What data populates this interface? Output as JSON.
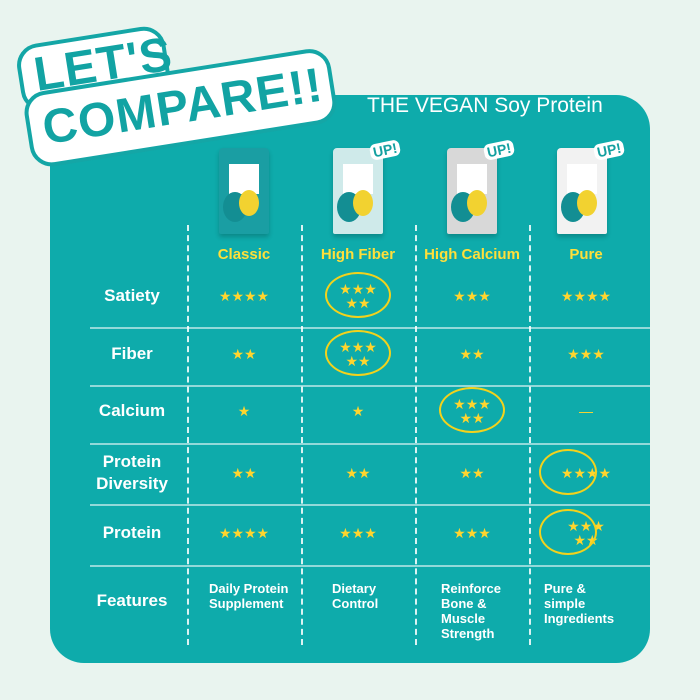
{
  "headline": {
    "line1": "LET'S",
    "line2": "COMPARE",
    "exclaim": "!!"
  },
  "brand_title": "THE VEGAN Soy Protein",
  "colors": {
    "background": "#e9f4ef",
    "card": "#0eabab",
    "accent": "#ffdf3a"
  },
  "products": [
    {
      "name": "Classic",
      "badge": "",
      "bag_color": "#1a9ea3"
    },
    {
      "name": "High Fiber",
      "badge": "UP!",
      "bag_color": "#cfeaea"
    },
    {
      "name": "High Calcium",
      "badge": "UP!",
      "bag_color": "#d8d8d8"
    },
    {
      "name": "Pure",
      "badge": "UP!",
      "bag_color": "#f2f2f2"
    }
  ],
  "rows": [
    {
      "label": "Satiety",
      "ratings": [
        4,
        5,
        3,
        4
      ],
      "display": [
        "★★★★",
        "★★★★★",
        "★★★",
        "★★★★"
      ],
      "highlighted": [
        false,
        true,
        false,
        false
      ]
    },
    {
      "label": "Fiber",
      "ratings": [
        2,
        5,
        2,
        3
      ],
      "display": [
        "★★",
        "★★★★★",
        "★★",
        "★★★"
      ],
      "highlighted": [
        false,
        true,
        false,
        false
      ]
    },
    {
      "label": "Calcium",
      "ratings": [
        1,
        1,
        5,
        0
      ],
      "display": [
        "★",
        "★",
        "★★★★★",
        "—"
      ],
      "highlighted": [
        false,
        false,
        true,
        false
      ]
    },
    {
      "label": "Protein Diversity",
      "ratings": [
        2,
        2,
        2,
        4
      ],
      "display": [
        "★★",
        "★★",
        "★★",
        "★★★★"
      ],
      "highlighted": [
        false,
        false,
        false,
        true
      ]
    },
    {
      "label": "Protein",
      "ratings": [
        4,
        3,
        3,
        5
      ],
      "display": [
        "★★★★",
        "★★★",
        "★★★",
        "★★★★★"
      ],
      "highlighted": [
        false,
        false,
        false,
        true
      ]
    }
  ],
  "features": {
    "label": "Features",
    "values": [
      "Daily Protein Supplement",
      "Dietary Control",
      "Reinforce Bone & Muscle Strength",
      "Pure & simple Ingredients"
    ]
  }
}
